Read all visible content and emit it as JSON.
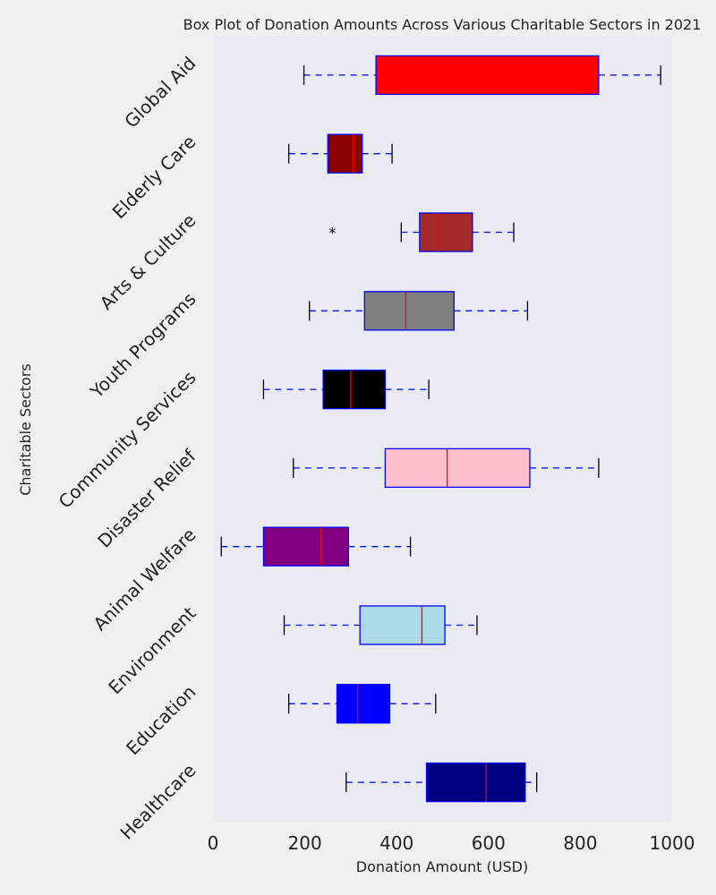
{
  "chart_data": {
    "type": "boxplot",
    "title": "Box Plot of Donation Amounts Across Various Charitable Sectors in 2021",
    "xlabel": "Donation Amount (USD)",
    "ylabel": "Charitable Sectors",
    "xlim": [
      0,
      1000
    ],
    "xticks": [
      0,
      200,
      400,
      600,
      800,
      1000
    ],
    "xtick_labels": [
      "0",
      "200",
      "400",
      "600",
      "800",
      "1000"
    ],
    "grid": false,
    "categories": [
      "Healthcare",
      "Education",
      "Environment",
      "Animal Welfare",
      "Disaster Relief",
      "Community Services",
      "Youth Programs",
      "Arts & Culture",
      "Elderly Care",
      "Global Aid"
    ],
    "series": [
      {
        "name": "Healthcare",
        "whislo": 290,
        "q1": 465,
        "med": 595,
        "q3": 680,
        "whishi": 705,
        "fliers": [],
        "color": "#000080"
      },
      {
        "name": "Education",
        "whislo": 165,
        "q1": 270,
        "med": 315,
        "q3": 385,
        "whishi": 485,
        "fliers": [],
        "color": "#0000ff"
      },
      {
        "name": "Environment",
        "whislo": 155,
        "q1": 320,
        "med": 455,
        "q3": 505,
        "whishi": 575,
        "fliers": [],
        "color": "#add8e6"
      },
      {
        "name": "Animal Welfare",
        "whislo": 18,
        "q1": 110,
        "med": 235,
        "q3": 295,
        "whishi": 430,
        "fliers": [],
        "color": "#800080"
      },
      {
        "name": "Disaster Relief",
        "whislo": 175,
        "q1": 375,
        "med": 510,
        "q3": 690,
        "whishi": 840,
        "fliers": [],
        "color": "#ffc0cb"
      },
      {
        "name": "Community Services",
        "whislo": 110,
        "q1": 240,
        "med": 300,
        "q3": 375,
        "whishi": 470,
        "fliers": [],
        "color": "#000000"
      },
      {
        "name": "Youth Programs",
        "whislo": 210,
        "q1": 330,
        "med": 420,
        "q3": 525,
        "whishi": 685,
        "fliers": [],
        "color": "#808080"
      },
      {
        "name": "Arts & Culture",
        "whislo": 410,
        "q1": 450,
        "med": 490,
        "q3": 565,
        "whishi": 655,
        "fliers": [
          260
        ],
        "color": "#a52a2a"
      },
      {
        "name": "Elderly Care",
        "whislo": 165,
        "q1": 250,
        "med": 305,
        "q3": 325,
        "whishi": 390,
        "fliers": [],
        "color": "#8b0000"
      },
      {
        "name": "Global Aid",
        "whislo": 198,
        "q1": 355,
        "med": 375,
        "q3": 840,
        "whishi": 975,
        "fliers": [],
        "color": "#ff0000"
      }
    ],
    "box_edge_color": "#0000ff",
    "median_color": "#ff0000",
    "whisker_color": "#0000ff",
    "cap_color": "#000000",
    "plot_background": "#eaeaf2",
    "figure_background": "#f0f0f0"
  }
}
